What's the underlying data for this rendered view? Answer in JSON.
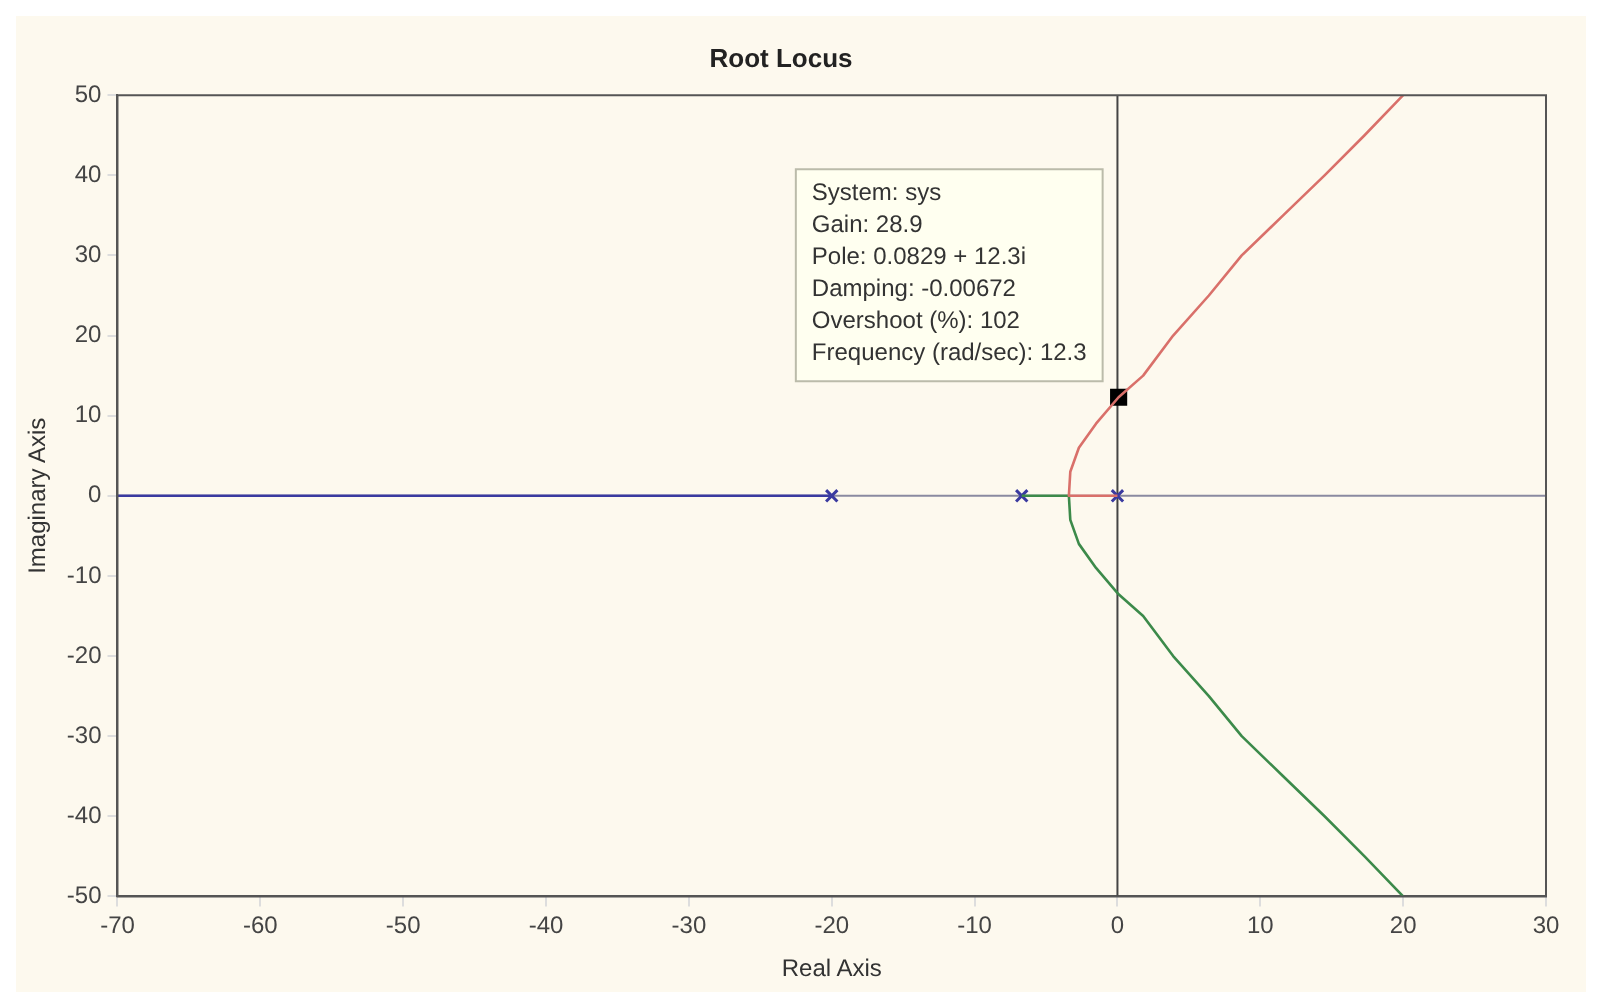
{
  "chart_data": {
    "type": "line",
    "title": "Root Locus",
    "xlabel": "Real Axis",
    "ylabel": "Imaginary Axis",
    "xlim": [
      -70,
      30
    ],
    "xticks": [
      -70,
      -60,
      -50,
      -40,
      -30,
      -20,
      -10,
      0,
      10,
      20,
      30
    ],
    "ylim": [
      -50,
      50
    ],
    "yticks": [
      -50,
      -40,
      -30,
      -20,
      -10,
      0,
      10,
      20,
      30,
      40,
      50
    ],
    "grid": false,
    "legend": false,
    "series": [
      {
        "color": "#3a3aa0",
        "x": [
          -20,
          -70
        ],
        "values": [
          0,
          0
        ]
      },
      {
        "color": "#d9706a",
        "x": [
          0,
          -1.5,
          -3.4,
          -3.3,
          -2.7,
          -1.5,
          0.08,
          1.8,
          3.9,
          6.4,
          8.7,
          11.6,
          14.5,
          17.3,
          20
        ],
        "values": [
          0,
          0,
          0,
          3,
          6,
          9,
          12.3,
          15,
          20,
          25,
          30,
          35,
          40,
          45,
          50
        ]
      },
      {
        "color": "#3c8a4a",
        "x": [
          -6.7,
          -5,
          -3.4,
          -3.3,
          -2.7,
          -1.5,
          0.08,
          1.8,
          3.9,
          6.4,
          8.7,
          11.6,
          14.5,
          17.3,
          20
        ],
        "values": [
          0,
          0,
          0,
          -3,
          -6,
          -9,
          -12.3,
          -15,
          -20,
          -25,
          -30,
          -35,
          -40,
          -45,
          -50
        ]
      },
      {
        "type": "scatter",
        "marker": "cross",
        "color": "#3a3aa0",
        "x": [
          -20,
          -6.7,
          0
        ],
        "values": [
          0,
          0,
          0
        ]
      },
      {
        "type": "scatter",
        "marker": "square",
        "color": "#000000",
        "x": [
          0.0829
        ],
        "values": [
          12.3
        ]
      }
    ],
    "ref_lines": [
      {
        "axis": "x",
        "value": 0,
        "color": "#444444"
      },
      {
        "axis": "y",
        "value": 0,
        "color": "#8a8aa0"
      }
    ],
    "annotations": [
      {
        "text": "System: sys\nGain: 28.9\nPole: 0.0829 + 12.3i\nDamping: -0.00672\nOvershoot (%): 102\nFrequency (rad/sec): 12.3",
        "x": 0.0829,
        "y": 12.3
      }
    ]
  }
}
